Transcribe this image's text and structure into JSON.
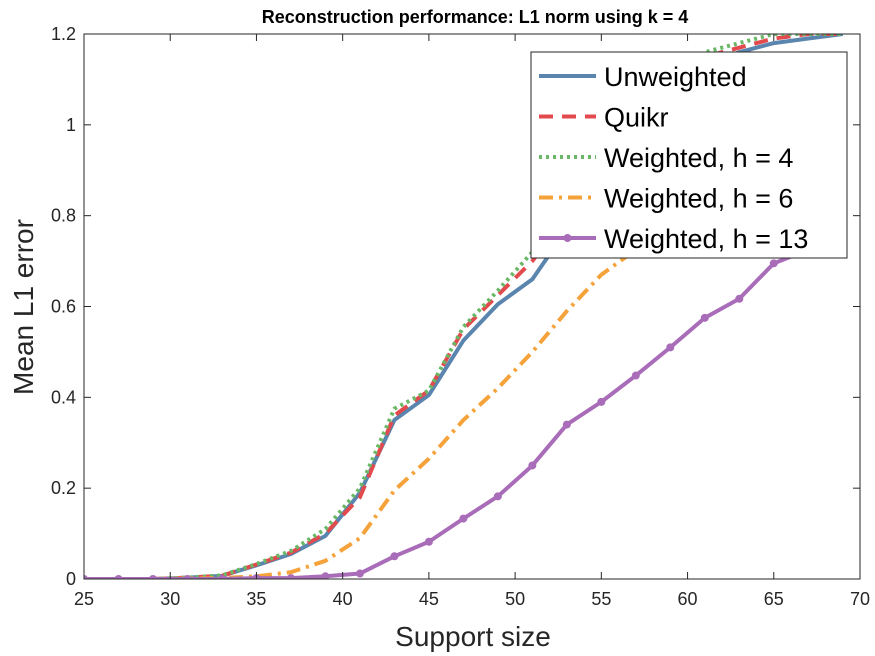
{
  "chart_data": {
    "type": "line",
    "title": "Reconstruction performance: L1 norm using k = 4",
    "xlabel": "Support size",
    "ylabel": "Mean L1 error",
    "xlim": [
      25,
      70
    ],
    "ylim": [
      0,
      1.2
    ],
    "x_ticks": [
      25,
      30,
      35,
      40,
      45,
      50,
      55,
      60,
      65,
      70
    ],
    "y_ticks": [
      0,
      0.2,
      0.4,
      0.6,
      0.8,
      1,
      1.2
    ],
    "x_tick_labels": [
      "25",
      "30",
      "35",
      "40",
      "45",
      "50",
      "55",
      "60",
      "65",
      "70"
    ],
    "y_tick_labels": [
      "0",
      "0.2",
      "0.4",
      "0.6",
      "0.8",
      "1",
      "1.2"
    ],
    "grid": false,
    "legend_position": "top-right",
    "x": [
      25,
      27,
      29,
      31,
      33,
      35,
      37,
      39,
      41,
      43,
      45,
      47,
      49,
      51,
      53,
      55,
      57,
      59,
      61,
      63,
      65,
      67,
      69
    ],
    "series": [
      {
        "name": "Unweighted",
        "color": "#5a85ae",
        "dash": "solid",
        "marker": "none",
        "values": [
          0,
          0,
          0,
          0.003,
          0.007,
          0.03,
          0.055,
          0.095,
          0.19,
          0.35,
          0.405,
          0.525,
          0.605,
          0.66,
          0.77,
          0.9,
          1.0,
          1.08,
          1.13,
          1.16,
          1.18,
          1.19,
          1.2
        ]
      },
      {
        "name": "Quikr",
        "color": "#e24a4e",
        "dash": "dashed",
        "marker": "none",
        "values": [
          0,
          0,
          0,
          0.003,
          0.007,
          0.032,
          0.058,
          0.1,
          0.18,
          0.36,
          0.415,
          0.55,
          0.625,
          0.7,
          0.8,
          0.92,
          1.02,
          1.1,
          1.15,
          1.17,
          1.19,
          1.2,
          1.2
        ]
      },
      {
        "name": "Weighted, h = 4",
        "color": "#6ab865",
        "dash": "dotted",
        "marker": "none",
        "values": [
          0,
          0,
          0,
          0.003,
          0.008,
          0.033,
          0.062,
          0.11,
          0.2,
          0.375,
          0.415,
          0.555,
          0.635,
          0.72,
          0.82,
          0.94,
          1.04,
          1.12,
          1.16,
          1.18,
          1.2,
          1.2,
          1.2
        ]
      },
      {
        "name": "Weighted, h = 6",
        "color": "#f5a23a",
        "dash": "dashdot",
        "marker": "none",
        "values": [
          0,
          0,
          0,
          0.001,
          0.002,
          0.006,
          0.015,
          0.04,
          0.09,
          0.195,
          0.265,
          0.35,
          0.42,
          0.5,
          0.59,
          0.67,
          0.725,
          0.77,
          0.81,
          0.85,
          0.88,
          0.9,
          0.92
        ]
      },
      {
        "name": "Weighted, h = 13",
        "color": "#a96cb8",
        "dash": "solid",
        "marker": "circle",
        "values": [
          0,
          0,
          0,
          0,
          0,
          0.002,
          0.002,
          0.006,
          0.012,
          0.05,
          0.082,
          0.133,
          0.182,
          0.25,
          0.34,
          0.39,
          0.448,
          0.51,
          0.575,
          0.617,
          0.695,
          0.725,
          0.755
        ]
      }
    ]
  }
}
